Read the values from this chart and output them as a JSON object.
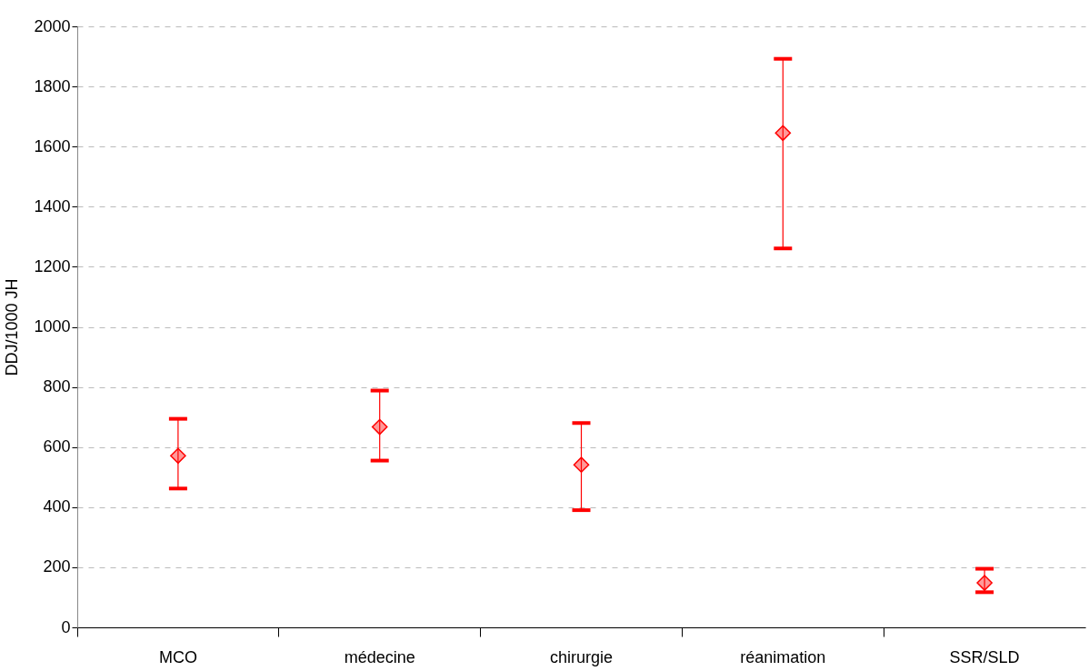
{
  "chart_data": {
    "type": "scatter",
    "ylabel": "DDJ/1000 JH",
    "categories": [
      "MCO",
      "médecine",
      "chirurgie",
      "réanimation",
      "SSR/SLD"
    ],
    "series": [
      {
        "color": "#ff0000",
        "values": [
          571,
          667,
          541,
          1645,
          148
        ],
        "errors": [
          [
            462,
            694
          ],
          [
            555,
            788
          ],
          [
            390,
            680
          ],
          [
            1261,
            1892
          ],
          [
            117,
            195
          ]
        ]
      }
    ],
    "marker": "diamond",
    "ylim": [
      0,
      2000
    ],
    "yticks": [
      0,
      200,
      400,
      600,
      800,
      1000,
      1200,
      1400,
      1600,
      1800,
      2000
    ],
    "grid": "y"
  }
}
